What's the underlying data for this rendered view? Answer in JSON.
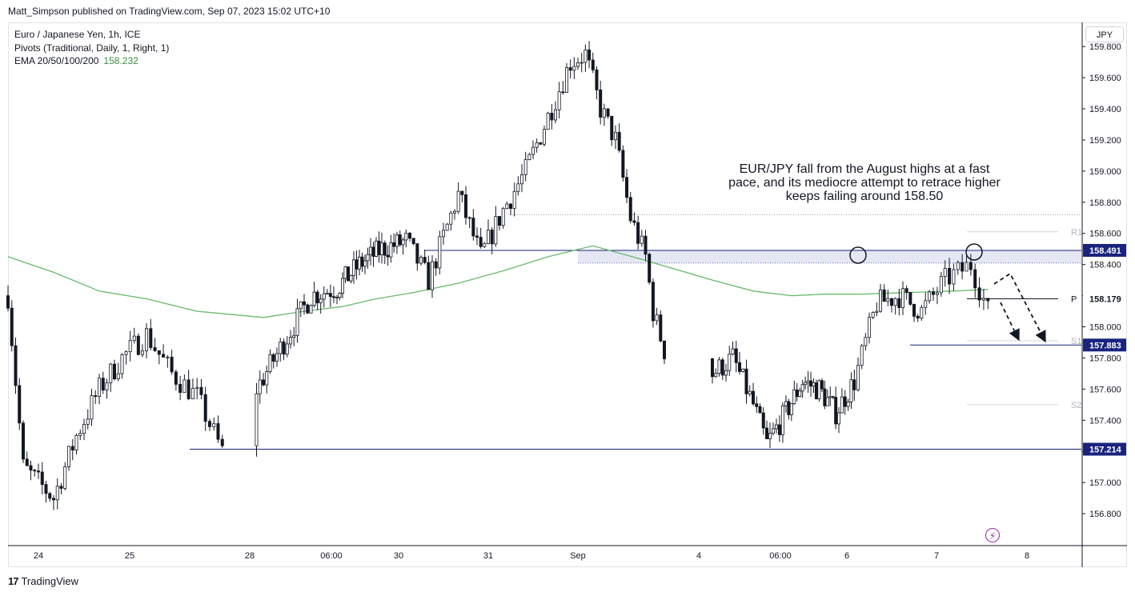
{
  "header": {
    "publisher_line": "Matt_Simpson published on TradingView.com, Sep 07, 2023 15:02 UTC+10"
  },
  "legend": {
    "symbol": "Euro / Japanese Yen, 1h, ICE",
    "pivots": "Pivots (Traditional, Daily, 1, Right, 1)",
    "ema_label": "EMA 20/50/100/200",
    "ema_value": "158.232"
  },
  "currency_button": "JPY",
  "annotation": "EUR/JPY fall from the August highs at a fast pace, and its mediocre attempt to retrace higher keeps failing around 158.50",
  "footer": {
    "brand": "TradingView",
    "logo_mark": "17"
  },
  "icons": {
    "lightning": "lightning-icon"
  },
  "colors": {
    "bull": "#ffffff",
    "bear": "#131722",
    "ema": "#66bb6a",
    "level": "#1a237e",
    "zone": "#c5cae9"
  },
  "chart_data": {
    "type": "candlestick",
    "symbol": "EUR/JPY",
    "timeframe": "1h",
    "ylim": [
      156.6,
      159.95
    ],
    "yticks": [
      "159.800",
      "159.600",
      "159.400",
      "159.200",
      "159.000",
      "158.800",
      "158.600",
      "158.400",
      "158.200",
      "158.000",
      "157.800",
      "157.600",
      "157.400",
      "157.200",
      "157.000",
      "156.800"
    ],
    "xticks": [
      "24",
      "25",
      "28",
      "06:00",
      "30",
      "31",
      "Sep",
      "4",
      "06:00",
      "6",
      "7",
      "8"
    ],
    "price_labels": [
      {
        "value": 158.491,
        "label": "158.491",
        "style": "solid-dark"
      },
      {
        "value": 158.179,
        "label": "158.179",
        "style": "plain"
      },
      {
        "value": 157.883,
        "label": "157.883",
        "style": "solid-dark"
      },
      {
        "value": 157.214,
        "label": "157.214",
        "style": "solid-dark"
      }
    ],
    "pivots": [
      {
        "name": "R1",
        "value": 158.61
      },
      {
        "name": "P",
        "value": 158.18
      },
      {
        "name": "S1",
        "value": 157.91
      },
      {
        "name": "S2",
        "value": 157.5
      }
    ],
    "resistance_zone": [
      158.41,
      158.491
    ],
    "support_line": 157.214,
    "dotted_level": 158.72,
    "ema_series": [
      [
        "Aug 23 16:00",
        158.45
      ],
      [
        "Aug 24 04:00",
        158.35
      ],
      [
        "Aug 24 16:00",
        158.23
      ],
      [
        "Aug 25 04:00",
        158.18
      ],
      [
        "Aug 25 16:00",
        158.1
      ],
      [
        "Aug 28 04:00",
        158.06
      ],
      [
        "Aug 28 16:00",
        158.1
      ],
      [
        "Aug 29 04:00",
        158.13
      ],
      [
        "Aug 29 16:00",
        158.18
      ],
      [
        "Aug 30 04:00",
        158.22
      ],
      [
        "Aug 30 16:00",
        158.28
      ],
      [
        "Aug 31 04:00",
        158.36
      ],
      [
        "Aug 31 16:00",
        158.45
      ],
      [
        "Sep 01 04:00",
        158.52
      ],
      [
        "Sep 01 16:00",
        158.44
      ],
      [
        "Sep 04 04:00",
        158.3
      ],
      [
        "Sep 04 16:00",
        158.23
      ],
      [
        "Sep 05 04:00",
        158.2
      ],
      [
        "Sep 05 16:00",
        158.21
      ],
      [
        "Sep 06 04:00",
        158.21
      ],
      [
        "Sep 06 16:00",
        158.22
      ],
      [
        "Sep 07 04:00",
        158.23
      ],
      [
        "Sep 07 12:00",
        158.24
      ]
    ],
    "price_path": [
      [
        "Aug 23 16:00",
        158.2
      ],
      [
        "Aug 23 20:00",
        157.1
      ],
      [
        "Aug 24 04:00",
        156.9
      ],
      [
        "Aug 24 10:00",
        157.3
      ],
      [
        "Aug 24 16:00",
        157.6
      ],
      [
        "Aug 24 22:00",
        157.8
      ],
      [
        "Aug 25 04:00",
        157.95
      ],
      [
        "Aug 25 10:00",
        157.7
      ],
      [
        "Aug 25 16:00",
        157.55
      ],
      [
        "Aug 25 22:00",
        157.2
      ],
      [
        "Aug 28 02:00",
        157.6
      ],
      [
        "Aug 28 10:00",
        157.9
      ],
      [
        "Aug 28 18:00",
        158.2
      ],
      [
        "Aug 29 02:00",
        158.25
      ],
      [
        "Aug 29 10:00",
        158.4
      ],
      [
        "Aug 29 18:00",
        158.5
      ],
      [
        "Aug 30 02:00",
        158.55
      ],
      [
        "Aug 30 08:00",
        158.3
      ],
      [
        "Aug 30 16:00",
        158.85
      ],
      [
        "Aug 30 22:00",
        158.45
      ],
      [
        "Aug 31 04:00",
        158.75
      ],
      [
        "Aug 31 10:00",
        159.0
      ],
      [
        "Aug 31 16:00",
        159.35
      ],
      [
        "Aug 31 22:00",
        159.7
      ],
      [
        "Sep 01 02:00",
        159.75
      ],
      [
        "Sep 01 06:00",
        159.4
      ],
      [
        "Sep 01 10:00",
        159.2
      ],
      [
        "Sep 01 14:00",
        158.7
      ],
      [
        "Sep 01 18:00",
        158.45
      ],
      [
        "Sep 01 20:00",
        158.1
      ],
      [
        "Sep 01 23:00",
        157.85
      ],
      [
        "Sep 04 04:00",
        157.7
      ],
      [
        "Sep 04 10:00",
        157.8
      ],
      [
        "Sep 04 16:00",
        157.5
      ],
      [
        "Sep 04 20:00",
        157.25
      ],
      [
        "Sep 05 02:00",
        157.45
      ],
      [
        "Sep 05 08:00",
        157.65
      ],
      [
        "Sep 05 14:00",
        157.6
      ],
      [
        "Sep 05 20:00",
        157.45
      ],
      [
        "Sep 06 02:00",
        157.65
      ],
      [
        "Sep 06 08:00",
        158.15
      ],
      [
        "Sep 06 14:00",
        158.2
      ],
      [
        "Sep 06 20:00",
        158.1
      ],
      [
        "Sep 07 02:00",
        158.3
      ],
      [
        "Sep 07 08:00",
        158.4
      ],
      [
        "Sep 07 12:00",
        158.1
      ]
    ]
  }
}
